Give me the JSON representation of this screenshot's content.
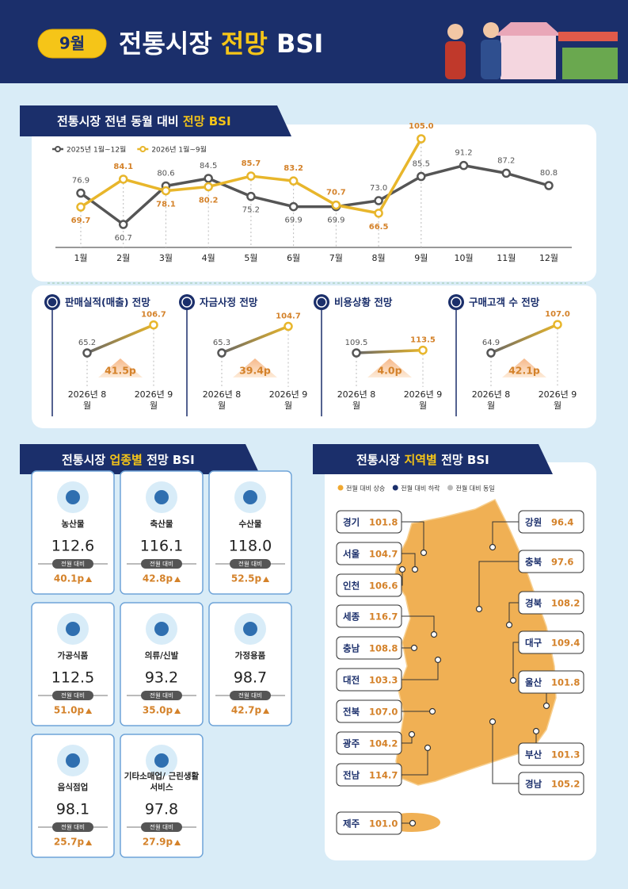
{
  "header": {
    "badge": "9월",
    "title": [
      "전통시장 ",
      "전망",
      " BSI"
    ]
  },
  "trend_section": {
    "title": [
      "전통시장 전년 동월 대비 ",
      "전망 BSI"
    ]
  },
  "chart_data": [
    {
      "type": "line",
      "categories": [
        "1월",
        "2월",
        "3월",
        "4월",
        "5월",
        "6월",
        "7월",
        "8월",
        "9월",
        "10월",
        "11월",
        "12월"
      ],
      "series": [
        {
          "name": "2025년 1월~12월",
          "color": "#555555",
          "values": [
            76.9,
            60.7,
            80.6,
            84.5,
            75.2,
            69.9,
            69.9,
            73.0,
            85.5,
            91.2,
            87.2,
            80.8
          ],
          "value_labels": [
            "76.9",
            "60.7",
            "80.6",
            "84.5",
            "75.2",
            "69.9",
            "69.9",
            "73.0",
            "85.5",
            "91.2",
            "87.2",
            "80.8"
          ]
        },
        {
          "name": "2026년 1월~9월",
          "color": "#e8b62b",
          "values": [
            69.7,
            84.1,
            78.1,
            80.2,
            85.7,
            83.2,
            70.7,
            66.5,
            105.0,
            null,
            null,
            null
          ],
          "value_labels": [
            "69.7",
            "84.1",
            "78.1",
            "80.2",
            "85.7",
            "83.2",
            "70.7",
            "66.5",
            "105.0",
            null,
            null,
            null
          ]
        }
      ]
    },
    {
      "type": "slope",
      "title": "판매실적(매출) 전망",
      "categories": [
        "2026년 8월",
        "2026년 9월"
      ],
      "values": [
        65.2,
        106.7
      ],
      "value_labels": [
        "65.2",
        "106.7"
      ],
      "annotation": "41.5p"
    },
    {
      "type": "slope",
      "title": "자금사정 전망",
      "categories": [
        "2026년 8월",
        "2026년 9월"
      ],
      "values": [
        65.3,
        104.7
      ],
      "value_labels": [
        "65.3",
        "104.7"
      ],
      "annotation": "39.4p"
    },
    {
      "type": "slope",
      "title": "비용상황 전망",
      "categories": [
        "2026년 8월",
        "2026년 9월"
      ],
      "values": [
        109.5,
        113.5
      ],
      "value_labels": [
        "109.5",
        "113.5"
      ],
      "annotation": "4.0p"
    },
    {
      "type": "slope",
      "title": "구매고객 수 전망",
      "categories": [
        "2026년 8월",
        "2026년 9월"
      ],
      "values": [
        64.9,
        107.0
      ],
      "value_labels": [
        "64.9",
        "107.0"
      ],
      "annotation": "42.1p"
    }
  ],
  "sectors": {
    "title": [
      "전통시장 ",
      "업종별",
      " 전망 BSI"
    ],
    "items": [
      {
        "name": "농산물",
        "value": "112.6",
        "change_label": "전월 대비",
        "change": "40.1p"
      },
      {
        "name": "축산물",
        "value": "116.1",
        "change_label": "전월 대비",
        "change": "42.8p"
      },
      {
        "name": "수산물",
        "value": "118.0",
        "change_label": "전월 대비",
        "change": "52.5p"
      },
      {
        "name": "가공식품",
        "value": "112.5",
        "change_label": "전월 대비",
        "change": "51.0p"
      },
      {
        "name": "의류/신발",
        "value": "93.2",
        "change_label": "전월 대비",
        "change": "35.0p"
      },
      {
        "name": "가정용품",
        "value": "98.7",
        "change_label": "전월 대비",
        "change": "42.7p"
      },
      {
        "name": "음식점업",
        "value": "98.1",
        "change_label": "전월 대비",
        "change": "25.7p"
      },
      {
        "name": "기타소매업/ 근린생활서비스",
        "value": "97.8",
        "change_label": "전월 대비",
        "change": "27.9p"
      }
    ]
  },
  "regions": {
    "title": [
      "전통시장 ",
      "지역별",
      " 전망 BSI"
    ],
    "legend": [
      {
        "label": "전월 대비 상승",
        "color": "#f0a830"
      },
      {
        "label": "전월 대비 하락",
        "color": "#1b2f6b"
      },
      {
        "label": "전월 대비 동일",
        "color": "#bbbbbb"
      }
    ],
    "items": [
      {
        "name": "경기",
        "value": "101.8"
      },
      {
        "name": "서울",
        "value": "104.7"
      },
      {
        "name": "인천",
        "value": "106.6"
      },
      {
        "name": "세종",
        "value": "116.7"
      },
      {
        "name": "충남",
        "value": "108.8"
      },
      {
        "name": "대전",
        "value": "103.3"
      },
      {
        "name": "전북",
        "value": "107.0"
      },
      {
        "name": "광주",
        "value": "104.2"
      },
      {
        "name": "전남",
        "value": "114.7"
      },
      {
        "name": "제주",
        "value": "101.0"
      },
      {
        "name": "강원",
        "value": "96.4"
      },
      {
        "name": "충북",
        "value": "97.6"
      },
      {
        "name": "경북",
        "value": "108.2"
      },
      {
        "name": "대구",
        "value": "109.4"
      },
      {
        "name": "울산",
        "value": "101.8"
      },
      {
        "name": "부산",
        "value": "101.3"
      },
      {
        "name": "경남",
        "value": "105.2"
      }
    ]
  }
}
